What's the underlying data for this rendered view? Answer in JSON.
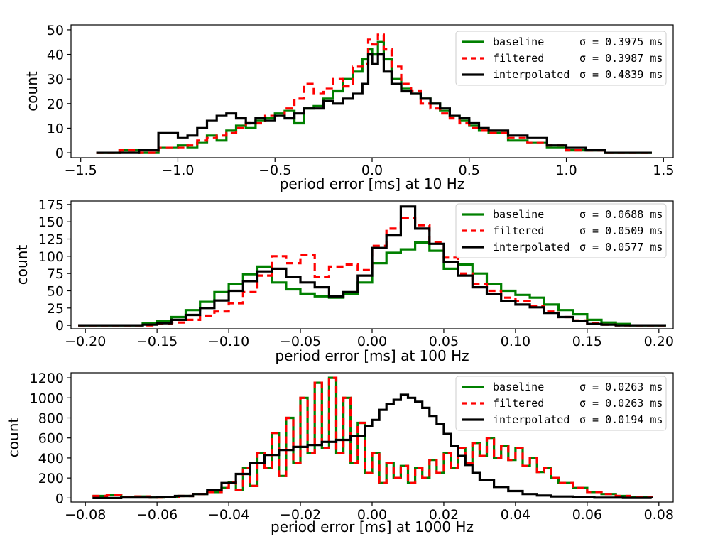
{
  "chart_data": [
    {
      "type": "histogram",
      "xlabel": "period error [ms] at 10 Hz",
      "ylabel": "count",
      "xlim": [
        -1.55,
        1.55
      ],
      "ylim": [
        -2,
        52
      ],
      "xticks": [
        -1.5,
        -1.0,
        -0.5,
        0.0,
        0.5,
        1.0,
        1.5
      ],
      "xtick_labels": [
        "−1.5",
        "−1.0",
        "−0.5",
        "0.0",
        "0.5",
        "1.0",
        "1.5"
      ],
      "yticks": [
        0,
        10,
        20,
        30,
        40,
        50
      ],
      "ytick_labels": [
        "0",
        "10",
        "20",
        "30",
        "40",
        "50"
      ],
      "legend_position": "top-right",
      "series": [
        {
          "name": "baseline",
          "sigma": "σ = 0.3975 ms",
          "color": "#008000",
          "dash": "solid",
          "x": [
            -1.42,
            -1.3,
            -1.2,
            -1.1,
            -1.0,
            -0.95,
            -0.9,
            -0.85,
            -0.8,
            -0.75,
            -0.7,
            -0.65,
            -0.6,
            -0.55,
            -0.5,
            -0.45,
            -0.4,
            -0.35,
            -0.3,
            -0.25,
            -0.2,
            -0.15,
            -0.1,
            -0.05,
            -0.02,
            0.0,
            0.03,
            0.06,
            0.1,
            0.15,
            0.2,
            0.25,
            0.3,
            0.35,
            0.4,
            0.45,
            0.5,
            0.55,
            0.6,
            0.7,
            0.8,
            0.9,
            1.0,
            1.1,
            1.2,
            1.3,
            1.44
          ],
          "y": [
            0,
            1,
            0,
            2,
            3,
            2,
            4,
            7,
            5,
            9,
            11,
            10,
            13,
            14,
            16,
            17,
            12,
            18,
            19,
            22,
            25,
            30,
            33,
            38,
            42,
            40,
            45,
            38,
            30,
            26,
            24,
            22,
            20,
            17,
            15,
            13,
            11,
            9,
            8,
            5,
            4,
            2,
            1,
            1,
            0,
            0,
            0
          ]
        },
        {
          "name": "filtered",
          "sigma": "σ = 0.3987 ms",
          "color": "#ff0000",
          "dash": "dashed",
          "x": [
            -1.42,
            -1.3,
            -1.2,
            -1.1,
            -1.0,
            -0.95,
            -0.9,
            -0.85,
            -0.8,
            -0.75,
            -0.7,
            -0.65,
            -0.6,
            -0.55,
            -0.5,
            -0.45,
            -0.4,
            -0.35,
            -0.3,
            -0.25,
            -0.2,
            -0.15,
            -0.1,
            -0.05,
            -0.02,
            0.0,
            0.03,
            0.06,
            0.1,
            0.15,
            0.2,
            0.25,
            0.3,
            0.35,
            0.4,
            0.45,
            0.5,
            0.55,
            0.6,
            0.7,
            0.8,
            0.9,
            1.0,
            1.1,
            1.2,
            1.3,
            1.44
          ],
          "y": [
            0,
            1,
            0,
            2,
            2,
            3,
            5,
            6,
            7,
            8,
            10,
            12,
            12,
            15,
            15,
            18,
            22,
            28,
            24,
            26,
            30,
            27,
            35,
            36,
            46,
            44,
            48,
            42,
            35,
            28,
            25,
            20,
            18,
            16,
            14,
            12,
            10,
            9,
            8,
            6,
            4,
            3,
            1,
            1,
            0,
            0,
            0
          ]
        },
        {
          "name": "interpolated",
          "sigma": "σ = 0.4839 ms",
          "color": "#000000",
          "dash": "solid",
          "x": [
            -1.42,
            -1.3,
            -1.2,
            -1.1,
            -1.0,
            -0.95,
            -0.9,
            -0.85,
            -0.8,
            -0.75,
            -0.7,
            -0.65,
            -0.6,
            -0.55,
            -0.5,
            -0.45,
            -0.4,
            -0.35,
            -0.3,
            -0.25,
            -0.2,
            -0.15,
            -0.1,
            -0.05,
            -0.02,
            0.0,
            0.03,
            0.06,
            0.1,
            0.15,
            0.2,
            0.25,
            0.3,
            0.35,
            0.4,
            0.45,
            0.5,
            0.55,
            0.6,
            0.7,
            0.8,
            0.9,
            1.0,
            1.1,
            1.2,
            1.3,
            1.44
          ],
          "y": [
            0,
            0,
            1,
            8,
            6,
            7,
            10,
            13,
            15,
            16,
            14,
            12,
            14,
            13,
            15,
            14,
            16,
            18,
            18,
            21,
            20,
            22,
            24,
            28,
            40,
            36,
            40,
            33,
            28,
            25,
            24,
            22,
            20,
            18,
            15,
            14,
            12,
            10,
            9,
            7,
            6,
            3,
            2,
            1,
            0,
            0,
            0
          ]
        }
      ]
    },
    {
      "type": "histogram",
      "xlabel": "period error [ms] at 100 Hz",
      "ylabel": "count",
      "xlim": [
        -0.21,
        0.21
      ],
      "ylim": [
        -5,
        180
      ],
      "xticks": [
        -0.2,
        -0.15,
        -0.1,
        -0.05,
        0.0,
        0.05,
        0.1,
        0.15,
        0.2
      ],
      "xtick_labels": [
        "−0.20",
        "−0.15",
        "−0.10",
        "−0.05",
        "0.00",
        "0.05",
        "0.10",
        "0.15",
        "0.20"
      ],
      "yticks": [
        0,
        25,
        50,
        75,
        100,
        125,
        150,
        175
      ],
      "ytick_labels": [
        "0",
        "25",
        "50",
        "75",
        "100",
        "125",
        "150",
        "175"
      ],
      "legend_position": "top-right",
      "series": [
        {
          "name": "baseline",
          "sigma": "σ = 0.0688 ms",
          "color": "#008000",
          "dash": "solid",
          "x": [
            -0.205,
            -0.16,
            -0.15,
            -0.14,
            -0.13,
            -0.12,
            -0.11,
            -0.1,
            -0.09,
            -0.08,
            -0.07,
            -0.06,
            -0.05,
            -0.04,
            -0.03,
            -0.02,
            -0.01,
            0.0,
            0.01,
            0.02,
            0.03,
            0.04,
            0.05,
            0.06,
            0.07,
            0.08,
            0.09,
            0.1,
            0.11,
            0.12,
            0.13,
            0.14,
            0.15,
            0.16,
            0.17,
            0.18,
            0.205
          ],
          "y": [
            0,
            3,
            6,
            12,
            22,
            34,
            48,
            60,
            74,
            85,
            62,
            52,
            46,
            42,
            40,
            45,
            62,
            90,
            105,
            110,
            120,
            108,
            82,
            88,
            75,
            60,
            50,
            44,
            40,
            30,
            22,
            16,
            8,
            4,
            2,
            0,
            0
          ]
        },
        {
          "name": "filtered",
          "sigma": "σ = 0.0509 ms",
          "color": "#ff0000",
          "dash": "dashed",
          "x": [
            -0.205,
            -0.16,
            -0.15,
            -0.14,
            -0.13,
            -0.12,
            -0.11,
            -0.1,
            -0.09,
            -0.08,
            -0.07,
            -0.06,
            -0.05,
            -0.04,
            -0.03,
            -0.02,
            -0.01,
            0.0,
            0.01,
            0.02,
            0.03,
            0.04,
            0.05,
            0.06,
            0.07,
            0.08,
            0.09,
            0.1,
            0.11,
            0.12,
            0.13,
            0.14,
            0.15,
            0.16,
            0.17,
            0.18,
            0.205
          ],
          "y": [
            0,
            0,
            2,
            4,
            8,
            14,
            20,
            32,
            48,
            72,
            100,
            90,
            102,
            70,
            85,
            88,
            80,
            115,
            140,
            155,
            145,
            120,
            98,
            75,
            60,
            50,
            40,
            35,
            28,
            20,
            12,
            7,
            3,
            1,
            0,
            0,
            0
          ]
        },
        {
          "name": "interpolated",
          "sigma": "σ = 0.0577 ms",
          "color": "#000000",
          "dash": "solid",
          "x": [
            -0.205,
            -0.16,
            -0.15,
            -0.14,
            -0.13,
            -0.12,
            -0.11,
            -0.1,
            -0.09,
            -0.08,
            -0.07,
            -0.06,
            -0.05,
            -0.04,
            -0.03,
            -0.02,
            -0.01,
            0.0,
            0.01,
            0.02,
            0.03,
            0.04,
            0.05,
            0.06,
            0.07,
            0.08,
            0.09,
            0.1,
            0.11,
            0.12,
            0.13,
            0.14,
            0.15,
            0.16,
            0.17,
            0.18,
            0.205
          ],
          "y": [
            0,
            1,
            3,
            8,
            15,
            25,
            36,
            50,
            64,
            78,
            82,
            70,
            62,
            55,
            42,
            48,
            72,
            112,
            130,
            172,
            140,
            118,
            92,
            72,
            55,
            45,
            35,
            30,
            26,
            18,
            12,
            6,
            2,
            1,
            0,
            0,
            0
          ]
        }
      ]
    },
    {
      "type": "histogram",
      "xlabel": "period error [ms] at 1000 Hz",
      "ylabel": "count",
      "xlim": [
        -0.084,
        0.084
      ],
      "ylim": [
        -40,
        1250
      ],
      "xticks": [
        -0.08,
        -0.06,
        -0.04,
        -0.02,
        0.0,
        0.02,
        0.04,
        0.06,
        0.08
      ],
      "xtick_labels": [
        "−0.08",
        "−0.06",
        "−0.04",
        "−0.02",
        "0.00",
        "0.02",
        "0.04",
        "0.06",
        "0.08"
      ],
      "yticks": [
        0,
        200,
        400,
        600,
        800,
        1000,
        1200
      ],
      "ytick_labels": [
        "0",
        "200",
        "400",
        "600",
        "800",
        "1000",
        "1200"
      ],
      "legend_position": "top-right",
      "series": [
        {
          "name": "baseline",
          "sigma": "σ = 0.0263 ms",
          "color": "#008000",
          "dash": "solid",
          "x": [
            -0.078,
            -0.074,
            -0.07,
            -0.066,
            -0.062,
            -0.058,
            -0.054,
            -0.05,
            -0.046,
            -0.042,
            -0.04,
            -0.038,
            -0.036,
            -0.034,
            -0.032,
            -0.03,
            -0.028,
            -0.026,
            -0.024,
            -0.022,
            -0.02,
            -0.018,
            -0.016,
            -0.014,
            -0.012,
            -0.01,
            -0.008,
            -0.006,
            -0.004,
            -0.002,
            0.0,
            0.002,
            0.004,
            0.006,
            0.008,
            0.01,
            0.012,
            0.014,
            0.016,
            0.018,
            0.02,
            0.022,
            0.024,
            0.026,
            0.028,
            0.03,
            0.032,
            0.034,
            0.036,
            0.038,
            0.04,
            0.042,
            0.044,
            0.046,
            0.048,
            0.05,
            0.052,
            0.056,
            0.06,
            0.064,
            0.068,
            0.072,
            0.078
          ],
          "y": [
            20,
            30,
            10,
            15,
            5,
            10,
            20,
            40,
            60,
            100,
            160,
            80,
            300,
            120,
            450,
            300,
            650,
            220,
            800,
            350,
            1000,
            450,
            1150,
            500,
            1200,
            450,
            1000,
            350,
            750,
            250,
            450,
            150,
            350,
            200,
            320,
            150,
            300,
            200,
            380,
            250,
            450,
            300,
            500,
            350,
            550,
            420,
            600,
            400,
            520,
            380,
            500,
            320,
            400,
            260,
            300,
            200,
            150,
            100,
            60,
            40,
            20,
            10,
            5
          ]
        },
        {
          "name": "filtered",
          "sigma": "σ = 0.0263 ms",
          "color": "#ff0000",
          "dash": "dashed",
          "x": [
            -0.078,
            -0.074,
            -0.07,
            -0.066,
            -0.062,
            -0.058,
            -0.054,
            -0.05,
            -0.046,
            -0.042,
            -0.04,
            -0.038,
            -0.036,
            -0.034,
            -0.032,
            -0.03,
            -0.028,
            -0.026,
            -0.024,
            -0.022,
            -0.02,
            -0.018,
            -0.016,
            -0.014,
            -0.012,
            -0.01,
            -0.008,
            -0.006,
            -0.004,
            -0.002,
            0.0,
            0.002,
            0.004,
            0.006,
            0.008,
            0.01,
            0.012,
            0.014,
            0.016,
            0.018,
            0.02,
            0.022,
            0.024,
            0.026,
            0.028,
            0.03,
            0.032,
            0.034,
            0.036,
            0.038,
            0.04,
            0.042,
            0.044,
            0.046,
            0.048,
            0.05,
            0.052,
            0.056,
            0.06,
            0.064,
            0.068,
            0.072,
            0.078
          ],
          "y": [
            20,
            30,
            10,
            15,
            5,
            10,
            20,
            40,
            60,
            100,
            160,
            80,
            300,
            120,
            450,
            300,
            650,
            220,
            800,
            350,
            1000,
            450,
            1150,
            500,
            1200,
            450,
            1000,
            350,
            750,
            250,
            450,
            150,
            350,
            200,
            320,
            150,
            300,
            200,
            380,
            250,
            450,
            300,
            500,
            350,
            550,
            420,
            600,
            400,
            520,
            380,
            500,
            320,
            400,
            260,
            300,
            200,
            150,
            100,
            60,
            40,
            20,
            10,
            5
          ]
        },
        {
          "name": "interpolated",
          "sigma": "σ = 0.0194 ms",
          "color": "#000000",
          "dash": "solid",
          "x": [
            -0.078,
            -0.07,
            -0.06,
            -0.055,
            -0.05,
            -0.046,
            -0.042,
            -0.038,
            -0.034,
            -0.03,
            -0.026,
            -0.022,
            -0.018,
            -0.014,
            -0.01,
            -0.006,
            -0.002,
            0.0,
            0.002,
            0.004,
            0.006,
            0.008,
            0.01,
            0.012,
            0.014,
            0.016,
            0.018,
            0.02,
            0.022,
            0.024,
            0.026,
            0.028,
            0.03,
            0.034,
            0.038,
            0.042,
            0.046,
            0.05,
            0.056,
            0.062,
            0.07,
            0.078
          ],
          "y": [
            0,
            5,
            10,
            20,
            40,
            80,
            150,
            240,
            350,
            430,
            480,
            510,
            530,
            560,
            580,
            620,
            720,
            780,
            880,
            940,
            980,
            1030,
            1000,
            960,
            900,
            820,
            740,
            640,
            520,
            420,
            330,
            250,
            180,
            110,
            70,
            40,
            25,
            15,
            8,
            4,
            2,
            0
          ]
        }
      ]
    }
  ]
}
